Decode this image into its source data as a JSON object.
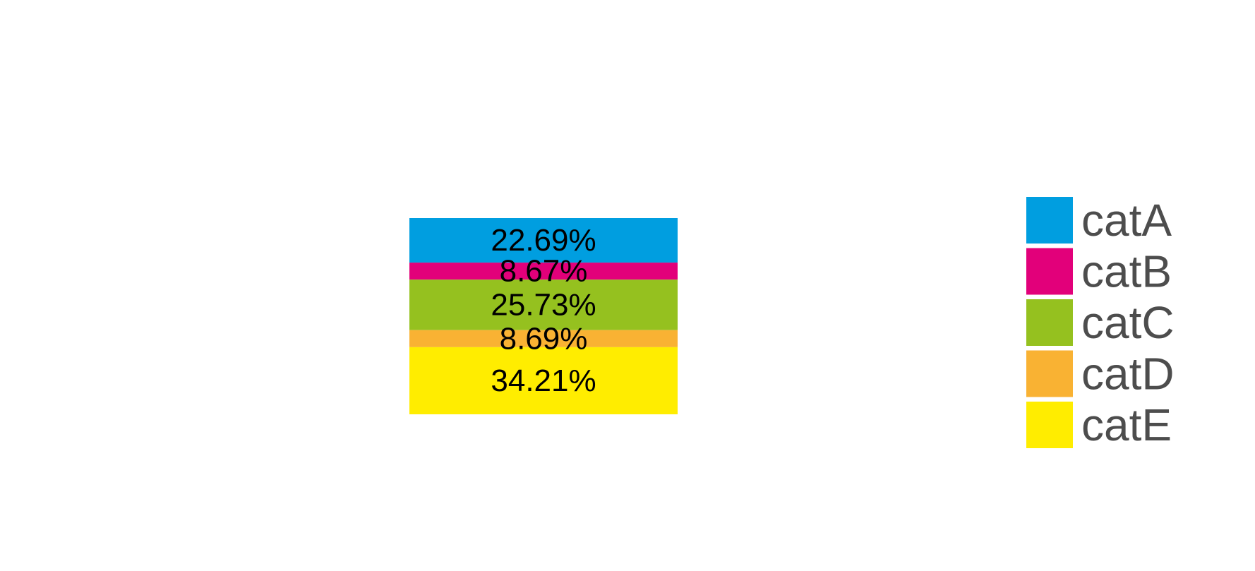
{
  "chart_data": {
    "type": "bar",
    "stacked": true,
    "normalized": true,
    "categories": [
      ""
    ],
    "series": [
      {
        "name": "catA",
        "values": [
          22.69
        ],
        "label": "22.69%",
        "color": "#009ee0"
      },
      {
        "name": "catB",
        "values": [
          8.67
        ],
        "label": "8.67%",
        "color": "#e2007a"
      },
      {
        "name": "catC",
        "values": [
          25.73
        ],
        "label": "25.73%",
        "color": "#95c11f"
      },
      {
        "name": "catD",
        "values": [
          8.69
        ],
        "label": "8.69%",
        "color": "#f9b233"
      },
      {
        "name": "catE",
        "values": [
          34.21
        ],
        "label": "34.21%",
        "color": "#ffed00"
      }
    ],
    "title": "",
    "xlabel": "",
    "ylabel": "",
    "ylim": [
      0,
      100
    ],
    "grid": false,
    "legend": "right"
  }
}
